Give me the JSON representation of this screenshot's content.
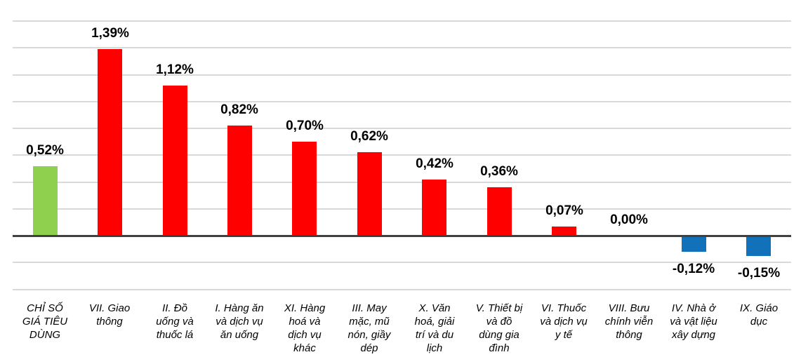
{
  "chart_data": {
    "type": "bar",
    "title": "",
    "xlabel": "",
    "ylabel": "",
    "categories": [
      "CHỈ SỐ GIÁ TIÊU DÙNG",
      "VII. Giao thông",
      "II. Đồ uống và thuốc lá",
      "I. Hàng ăn và dịch vụ ăn uống",
      "XI. Hàng hoá và dịch vụ khác",
      "III. May mặc, mũ nón, giầy dép",
      "X. Văn hoá, giải trí và du lịch",
      "V. Thiết bị và đồ dùng gia đình",
      "VI. Thuốc và dịch vụ y tế",
      "VIII. Bưu chính viễn thông",
      "IV. Nhà ở và vật liệu xây dựng",
      "IX. Giáo dục"
    ],
    "category_lines": [
      [
        "CHỈ SỐ",
        "GIÁ TIÊU",
        "DÙNG"
      ],
      [
        "VII. Giao",
        "thông"
      ],
      [
        "II. Đồ",
        "uống và",
        "thuốc lá"
      ],
      [
        "I. Hàng ăn",
        "và dịch vụ",
        "ăn uống"
      ],
      [
        "XI. Hàng",
        "hoá và",
        "dịch vụ",
        "khác"
      ],
      [
        "III. May",
        "mặc, mũ",
        "nón, giầy",
        "dép"
      ],
      [
        "X. Văn",
        "hoá, giải",
        "trí và du",
        "lịch"
      ],
      [
        "V. Thiết bị",
        "và đồ",
        "dùng gia",
        "đình"
      ],
      [
        "VI. Thuốc",
        "và dịch vụ",
        "y tế"
      ],
      [
        "VIII. Bưu",
        "chính viễn",
        "thông"
      ],
      [
        "IV. Nhà ở",
        "và vật liệu",
        "xây dựng"
      ],
      [
        "IX. Giáo",
        "dục"
      ]
    ],
    "values": [
      0.52,
      1.39,
      1.12,
      0.82,
      0.7,
      0.62,
      0.42,
      0.36,
      0.07,
      0.0,
      -0.12,
      -0.15
    ],
    "value_labels": [
      "0,52%",
      "1,39%",
      "1,12%",
      "0,82%",
      "0,70%",
      "0,62%",
      "0,42%",
      "0,36%",
      "0,07%",
      "0,00%",
      "-0,12%",
      "-0,15%"
    ],
    "bar_colors": [
      "#8FD14F",
      "#FF0000",
      "#FF0000",
      "#FF0000",
      "#FF0000",
      "#FF0000",
      "#FF0000",
      "#FF0000",
      "#FF0000",
      "#FF0000",
      "#1172BA",
      "#1172BA"
    ],
    "ylim": [
      -0.4,
      1.6
    ],
    "grid_step": 0.2,
    "grid": true,
    "legend": false,
    "colors": {
      "cpi_bar": "#8FD14F",
      "positive_bar": "#FF0000",
      "negative_bar": "#1172BA",
      "gridline": "#D9D9D9",
      "zero_line": "#404040",
      "text": "#000000",
      "background": "#FFFFFF"
    }
  }
}
